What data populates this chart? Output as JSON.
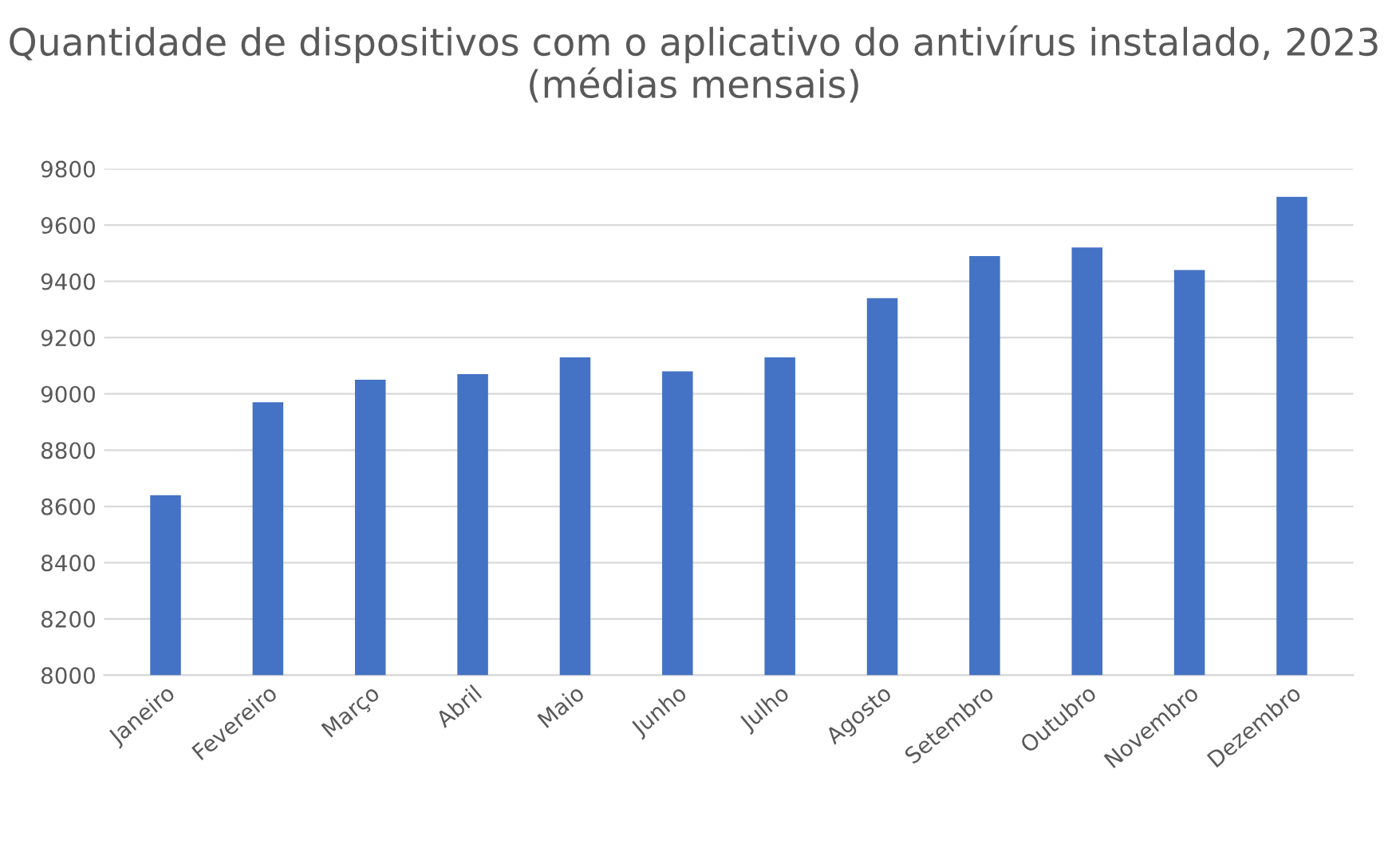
{
  "chart_data": {
    "type": "bar",
    "title": "Quantidade de dispositivos com o aplicativo do antivírus instalado, 2023 (médias mensais)",
    "categories": [
      "Janeiro",
      "Fevereiro",
      "Março",
      "Abril",
      "Maio",
      "Junho",
      "Julho",
      "Agosto",
      "Setembro",
      "Outubro",
      "Novembro",
      "Dezembro"
    ],
    "values": [
      8640,
      8970,
      9050,
      9070,
      9130,
      9080,
      9130,
      9340,
      9490,
      9520,
      9440,
      9700
    ],
    "color": "#4472c4",
    "ylim": [
      8000,
      9800
    ],
    "yticks": [
      8000,
      8200,
      8400,
      8600,
      8800,
      9000,
      9200,
      9400,
      9600,
      9800
    ],
    "grid": "y"
  }
}
